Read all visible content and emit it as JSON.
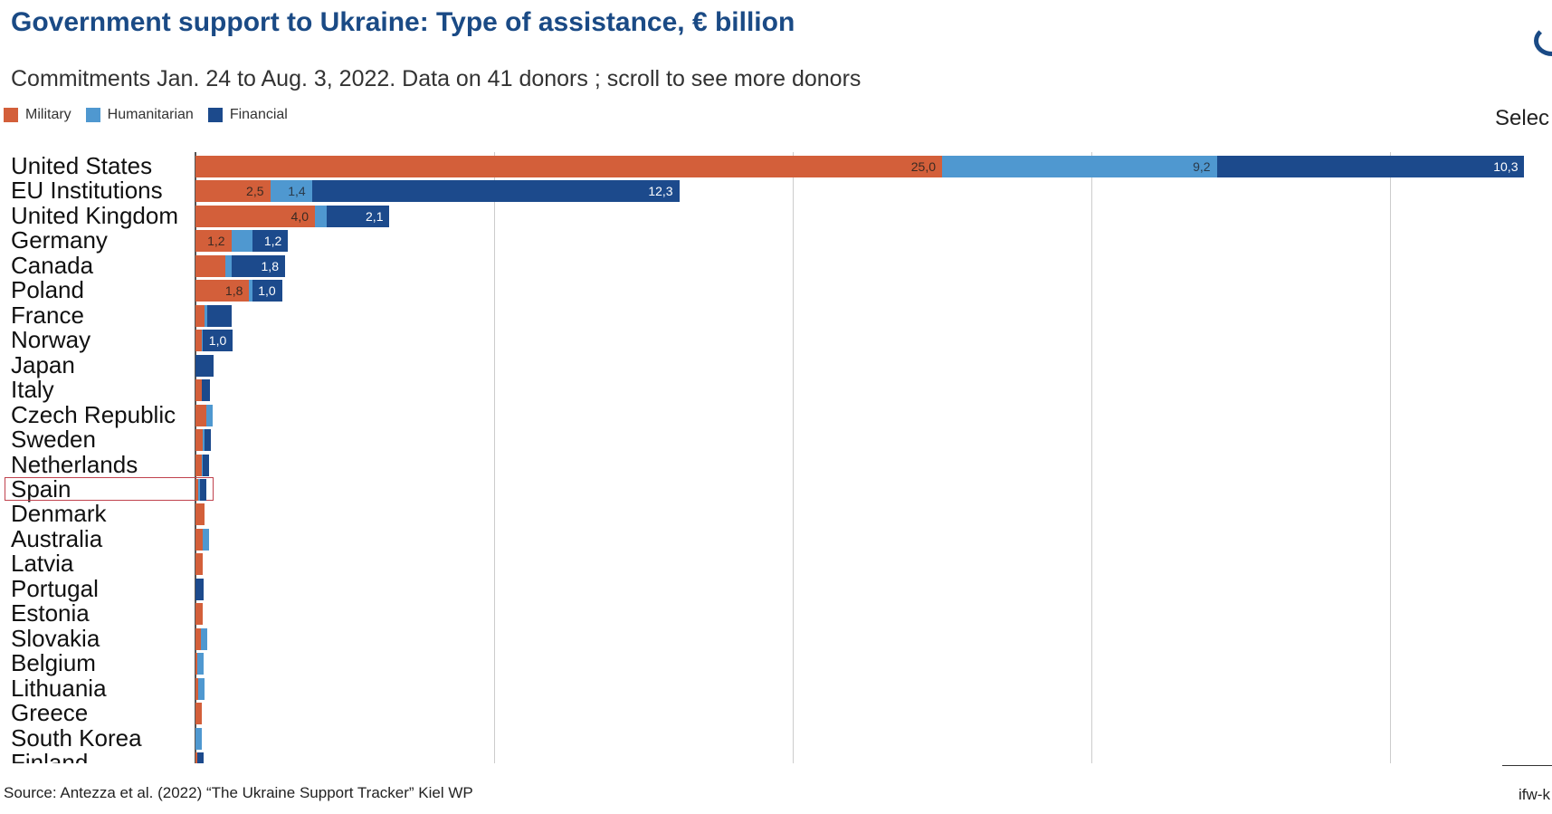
{
  "title": "Government support to Ukraine: Type of assistance, € billion",
  "subtitle": "Commitments Jan. 24 to Aug. 3, 2022. Data on 41 donors ; scroll to see more donors",
  "select_label": "Selec",
  "source": "Source: Antezza et al. (2022) “The Ukraine Support Tracker” Kiel WP",
  "footer_right": "ifw-k",
  "colors": {
    "Military": "#d35f3a",
    "Humanitarian": "#4f98d0",
    "Financial": "#1c4a8c"
  },
  "chart_data": {
    "type": "bar",
    "orientation": "horizontal",
    "stacked": true,
    "title": "Government support to Ukraine: Type of assistance, € billion",
    "xlim": [
      0,
      45
    ],
    "gridlines": [
      10,
      20,
      30,
      40
    ],
    "grid": true,
    "legend": "top-left",
    "highlighted": "Spain",
    "categories": [
      "United States",
      "EU Institutions",
      "United Kingdom",
      "Germany",
      "Canada",
      "Poland",
      "France",
      "Norway",
      "Japan",
      "Italy",
      "Czech Republic",
      "Sweden",
      "Netherlands",
      "Spain",
      "Denmark",
      "Australia",
      "Latvia",
      "Portugal",
      "Estonia",
      "Slovakia",
      "Belgium",
      "Lithuania",
      "Greece",
      "South Korea",
      "Finland"
    ],
    "series": [
      {
        "name": "Military",
        "values": [
          25.0,
          2.5,
          4.0,
          1.2,
          1.0,
          1.8,
          0.3,
          0.2,
          0.0,
          0.2,
          0.35,
          0.25,
          0.2,
          0.1,
          0.3,
          0.25,
          0.25,
          0.0,
          0.23,
          0.18,
          0.07,
          0.1,
          0.12,
          0.0,
          0.05
        ],
        "labels": [
          "25,0",
          "2,5",
          "4,0",
          "1,2",
          "",
          "1,8",
          "",
          "",
          "",
          "",
          "",
          "",
          "",
          "",
          "",
          "",
          "",
          "",
          "",
          "",
          "",
          "",
          "",
          "",
          ""
        ]
      },
      {
        "name": "Humanitarian",
        "values": [
          9.2,
          1.4,
          0.4,
          0.7,
          0.2,
          0.1,
          0.1,
          0.05,
          0.0,
          0.0,
          0.1,
          0.05,
          0.05,
          0.05,
          0.0,
          0.05,
          0.0,
          0.0,
          0.0,
          0.03,
          0.1,
          0.08,
          0.0,
          0.08,
          0.0
        ],
        "labels": [
          "9,2",
          "1,4",
          "",
          "",
          "",
          "",
          "",
          "",
          "",
          "",
          "",
          "",
          "",
          "",
          "",
          "",
          "",
          "",
          "",
          "",
          "",
          "",
          "",
          "",
          ""
        ]
      },
      {
        "name": "Financial",
        "values": [
          10.3,
          12.3,
          2.1,
          1.2,
          1.8,
          1.0,
          0.8,
          1.0,
          0.6,
          0.3,
          0.0,
          0.1,
          0.2,
          0.15,
          0.0,
          0.0,
          0.0,
          0.28,
          0.0,
          0.0,
          0.0,
          0.0,
          0.0,
          0.0,
          0.03
        ],
        "labels": [
          "10,3",
          "12,3",
          "2,1",
          "1,2",
          "1,8",
          "1,0",
          "",
          "1,0",
          "",
          "",
          "",
          "",
          "",
          "",
          "",
          "",
          "",
          "",
          "",
          "",
          "",
          "",
          "",
          "",
          ""
        ]
      }
    ]
  }
}
